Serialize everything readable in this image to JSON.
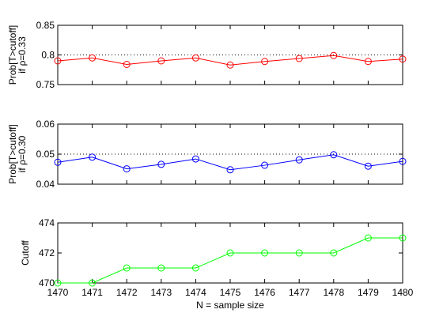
{
  "chart_data": [
    {
      "type": "line",
      "x": [
        1470,
        1471,
        1472,
        1473,
        1474,
        1475,
        1476,
        1477,
        1478,
        1479,
        1480
      ],
      "series": [
        {
          "values": [
            0.79,
            0.795,
            0.784,
            0.79,
            0.795,
            0.783,
            0.789,
            0.794,
            0.799,
            0.789,
            0.793
          ],
          "color": "#ff0000",
          "marker": "circle"
        }
      ],
      "ylabel": "Prob[T>cutoff]",
      "ylabel2": "if ρ=0.33",
      "ylim": [
        0.75,
        0.85
      ],
      "yticks": [
        "0.75",
        "0.8",
        "0.85"
      ],
      "xlim": [
        1470,
        1480
      ],
      "reference_line": {
        "y": 0.8,
        "style": "dotted"
      },
      "grid": false
    },
    {
      "type": "line",
      "x": [
        1470,
        1471,
        1472,
        1473,
        1474,
        1475,
        1476,
        1477,
        1478,
        1479,
        1480
      ],
      "series": [
        {
          "values": [
            0.0473,
            0.049,
            0.0451,
            0.0466,
            0.0484,
            0.0448,
            0.0463,
            0.0481,
            0.0498,
            0.046,
            0.0476
          ],
          "color": "#0000ff",
          "marker": "circle"
        }
      ],
      "ylabel": "Prob[T>cutoff]",
      "ylabel2": "if ρ=0.30",
      "ylim": [
        0.04,
        0.06
      ],
      "yticks": [
        "0.04",
        "0.05",
        "0.06"
      ],
      "xlim": [
        1470,
        1480
      ],
      "reference_line": {
        "y": 0.05,
        "style": "dotted"
      },
      "grid": false
    },
    {
      "type": "line",
      "x": [
        1470,
        1471,
        1472,
        1473,
        1474,
        1475,
        1476,
        1477,
        1478,
        1479,
        1480
      ],
      "series": [
        {
          "values": [
            470,
            470,
            471,
            471,
            471,
            472,
            472,
            472,
            472,
            473,
            473
          ],
          "color": "#00ff00",
          "marker": "circle"
        }
      ],
      "ylabel": "Cutoff",
      "ylim": [
        470,
        474
      ],
      "yticks": [
        "470",
        "472",
        "474"
      ],
      "xlim": [
        1470,
        1480
      ],
      "xticks": [
        "1470",
        "1471",
        "1472",
        "1473",
        "1474",
        "1475",
        "1476",
        "1477",
        "1478",
        "1479",
        "1480"
      ],
      "xlabel": "N = sample size",
      "grid": false
    }
  ]
}
